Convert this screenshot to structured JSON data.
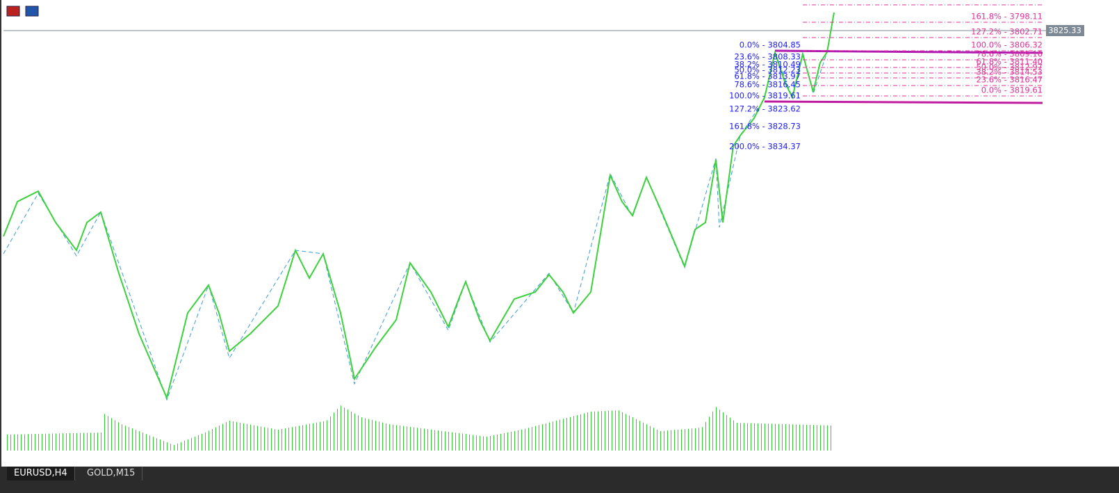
{
  "tabs": [
    "EURUSD,H4",
    "GOLD,M15"
  ],
  "price_label": "3825.33",
  "fibo_blue": [
    "0.0% - 3804.85",
    "23.6% - 3808.33",
    "38.2% - 3810.49",
    "50.0% - 3812.23",
    "61.8% - 3813.97",
    "78.6% - 3816.45",
    "100.0% - 3819.61",
    "127.2% - 3823.62",
    "161.8% - 3828.73",
    "200.0% - 3834.37"
  ],
  "fibo_pink": [
    "161.8% - 3798.11",
    "127.2% - 3802.71",
    "100.0% - 3806.32",
    "78.6% - 3809.16",
    "61.8% - 3811.40",
    "50.0% - 3812.97",
    "38.2% - 3814.53",
    "23.6% - 3816.47",
    "0.0% - 3819.61"
  ]
}
